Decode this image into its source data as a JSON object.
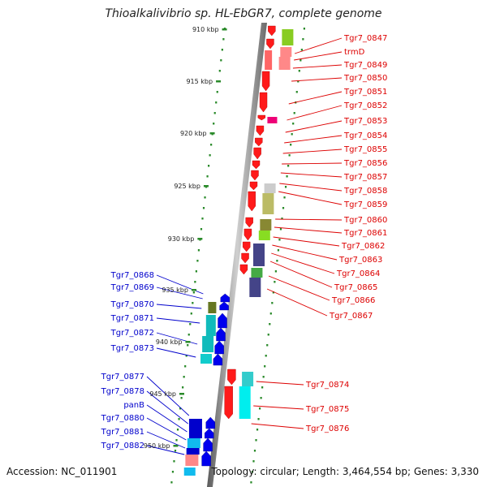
{
  "title": "Thioalkalivibrio sp. HL-EbGR7, complete genome",
  "footer": {
    "accession": "Accession: NC_011901",
    "summary": "Topology: circular; Length: 3,464,554 bp; Genes: 3,330"
  },
  "colors": {
    "forward_labels": "#dd0000",
    "reverse_labels": "#0000cc",
    "backbone": "#8a8a8a",
    "tick": "#2a8a2a"
  },
  "scale_ticks": [
    "910 kbp",
    "915 kbp",
    "920 kbp",
    "925 kbp",
    "930 kbp",
    "935 kbp",
    "940 kbp",
    "945 kbp",
    "950 kbp"
  ],
  "forward_genes": [
    "Tgr7_0847",
    "trmD",
    "Tgr7_0849",
    "Tgr7_0850",
    "Tgr7_0851",
    "Tgr7_0852",
    "Tgr7_0853",
    "Tgr7_0854",
    "Tgr7_0855",
    "Tgr7_0856",
    "Tgr7_0857",
    "Tgr7_0858",
    "Tgr7_0859",
    "Tgr7_0860",
    "Tgr7_0861",
    "Tgr7_0862",
    "Tgr7_0863",
    "Tgr7_0864",
    "Tgr7_0865",
    "Tgr7_0866",
    "Tgr7_0867",
    "Tgr7_0874",
    "Tgr7_0875",
    "Tgr7_0876"
  ],
  "reverse_genes": [
    "Tgr7_0868",
    "Tgr7_0869",
    "Tgr7_0870",
    "Tgr7_0871",
    "Tgr7_0872",
    "Tgr7_0873",
    "Tgr7_0877",
    "Tgr7_0878",
    "panB",
    "Tgr7_0880",
    "Tgr7_0881",
    "Tgr7_0882"
  ]
}
